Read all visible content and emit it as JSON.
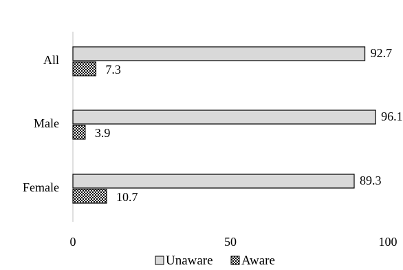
{
  "chart_data": {
    "type": "bar",
    "orientation": "horizontal",
    "categories": [
      "All",
      "Male",
      "Female"
    ],
    "series": [
      {
        "name": "Unaware",
        "values": [
          92.7,
          96.1,
          89.3
        ],
        "color": "#d9d9d9",
        "pattern": "solid"
      },
      {
        "name": "Aware",
        "values": [
          7.3,
          3.9,
          10.7
        ],
        "color": "#000000",
        "pattern": "checkered"
      }
    ],
    "value_labels": {
      "Unaware": [
        "92.7",
        "96.1",
        "89.3"
      ],
      "Aware": [
        "7.3",
        "3.9",
        "10.7"
      ]
    },
    "xlim": [
      0,
      100
    ],
    "x_ticks": [
      0,
      50,
      100
    ],
    "x_tick_labels": [
      "0",
      "50",
      "100"
    ],
    "title": "",
    "xlabel": "",
    "ylabel": "",
    "grid": false,
    "legend_position": "bottom"
  }
}
